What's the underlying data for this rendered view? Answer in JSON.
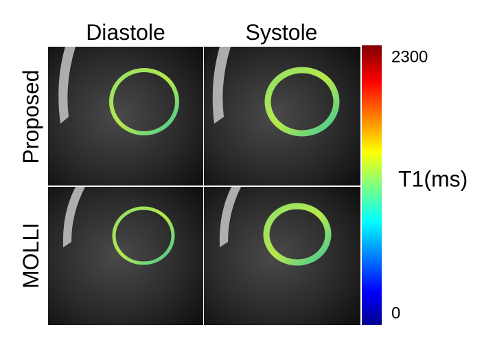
{
  "columns": [
    "Diastole",
    "Systole"
  ],
  "rows": [
    "Proposed",
    "MOLLI"
  ],
  "colorbar": {
    "label": "T1(ms)",
    "max": 2300,
    "min": 0
  }
}
